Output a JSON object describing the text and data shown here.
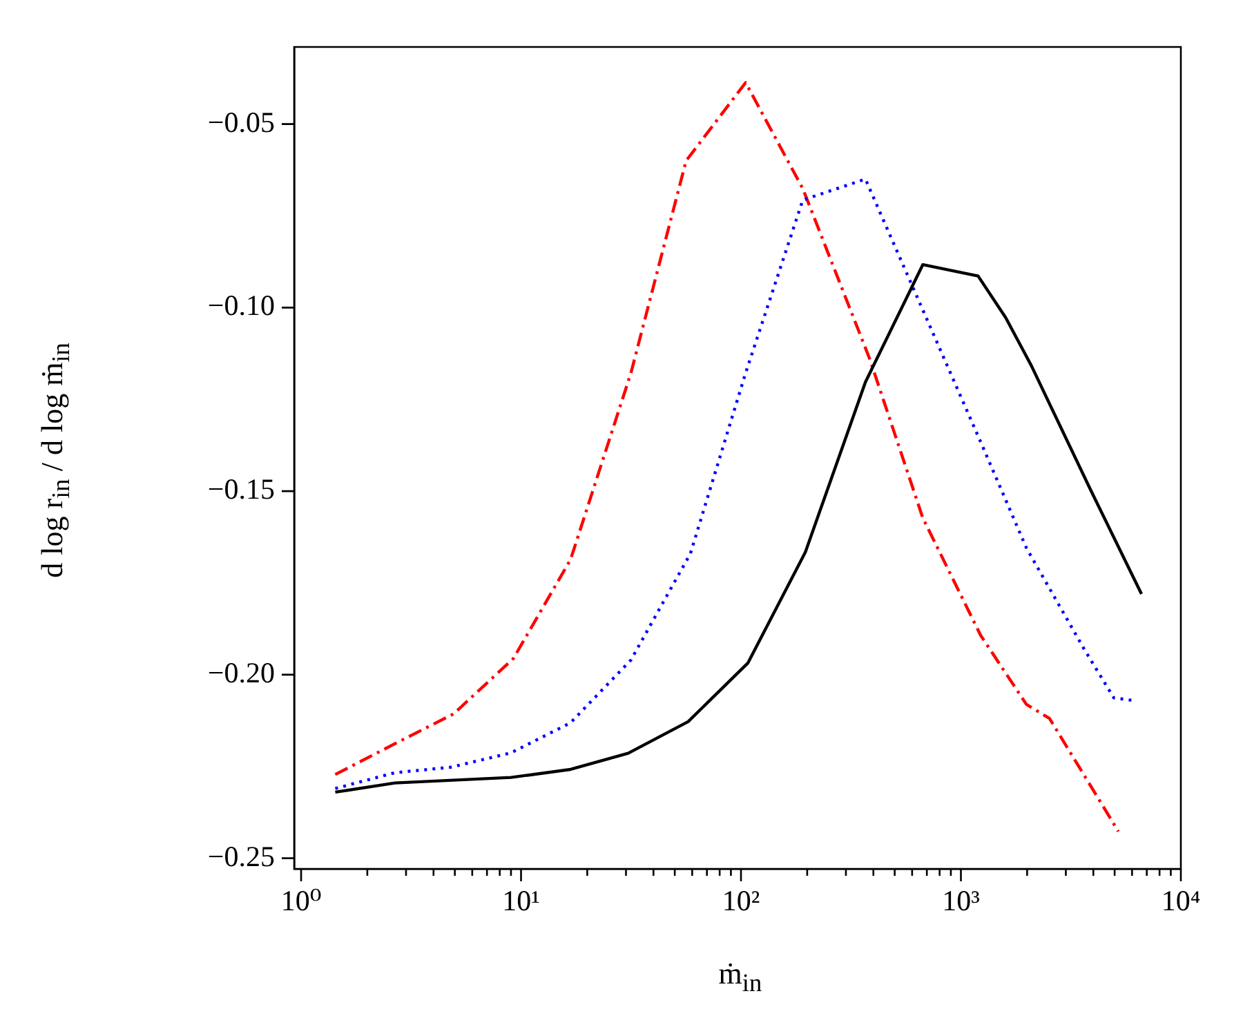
{
  "chart_data": {
    "type": "line",
    "xlabel": "ṁ$_{in}$",
    "ylabel": "d log r$_{in}$ / d log ṁ$_{in}$",
    "log": "x",
    "grid": false,
    "legend": false,
    "xlim": [
      0.93,
      10000
    ],
    "ylim": [
      -0.2529,
      -0.029
    ],
    "xticks": [
      {
        "value": 1,
        "label": "10⁰"
      },
      {
        "value": 2,
        "label": null
      },
      {
        "value": 3,
        "label": null
      },
      {
        "value": 4,
        "label": null
      },
      {
        "value": 5,
        "label": null
      },
      {
        "value": 6,
        "label": null
      },
      {
        "value": 7,
        "label": null
      },
      {
        "value": 8,
        "label": null
      },
      {
        "value": 9,
        "label": null
      },
      {
        "value": 10,
        "label": "10¹"
      },
      {
        "value": 20,
        "label": null
      },
      {
        "value": 30,
        "label": null
      },
      {
        "value": 40,
        "label": null
      },
      {
        "value": 50,
        "label": null
      },
      {
        "value": 60,
        "label": null
      },
      {
        "value": 70,
        "label": null
      },
      {
        "value": 80,
        "label": null
      },
      {
        "value": 90,
        "label": null
      },
      {
        "value": 100,
        "label": "10²"
      },
      {
        "value": 200,
        "label": null
      },
      {
        "value": 300,
        "label": null
      },
      {
        "value": 400,
        "label": null
      },
      {
        "value": 500,
        "label": null
      },
      {
        "value": 600,
        "label": null
      },
      {
        "value": 700,
        "label": null
      },
      {
        "value": 800,
        "label": null
      },
      {
        "value": 900,
        "label": null
      },
      {
        "value": 1000,
        "label": "10³"
      },
      {
        "value": 2000,
        "label": null
      },
      {
        "value": 3000,
        "label": null
      },
      {
        "value": 4000,
        "label": null
      },
      {
        "value": 5000,
        "label": null
      },
      {
        "value": 6000,
        "label": null
      },
      {
        "value": 7000,
        "label": null
      },
      {
        "value": 8000,
        "label": null
      },
      {
        "value": 9000,
        "label": null
      },
      {
        "value": 10000,
        "label": "10⁴"
      }
    ],
    "yticks": [
      {
        "value": -0.05,
        "label": "−0.05"
      },
      {
        "value": -0.1,
        "label": "−0.10"
      },
      {
        "value": -0.15,
        "label": "−0.15"
      },
      {
        "value": -0.2,
        "label": "−0.20"
      },
      {
        "value": -0.25,
        "label": "−0.25"
      }
    ],
    "series": [
      {
        "color": "#000000",
        "line_style": "solid",
        "x": [
          1.43,
          2.67,
          9.0,
          16.8,
          30.7,
          57.5,
          107.6,
          196,
          368,
          671,
          1197,
          1597,
          2094,
          3897,
          6622
        ],
        "values": [
          -0.232,
          -0.2295,
          -0.228,
          -0.2258,
          -0.2214,
          -0.2128,
          -0.1968,
          -0.1667,
          -0.1203,
          -0.0883,
          -0.0914,
          -0.1027,
          -0.1159,
          -0.1498,
          -0.178
        ]
      },
      {
        "color": "#0000ff",
        "line_style": "dotted",
        "x": [
          1.43,
          2.67,
          4.81,
          9.0,
          16.8,
          31.6,
          58.9,
          105,
          191,
          368,
          1230,
          1986,
          3630,
          4955,
          6165
        ],
        "values": [
          -0.231,
          -0.2267,
          -0.2252,
          -0.2213,
          -0.2131,
          -0.196,
          -0.167,
          -0.1178,
          -0.0707,
          -0.065,
          -0.1366,
          -0.1655,
          -0.193,
          -0.2063,
          -0.2071
        ]
      },
      {
        "color": "#ff0000",
        "line_style": "dashdot",
        "x": [
          1.43,
          2.67,
          4.93,
          9.23,
          16.8,
          31.6,
          56.3,
          105,
          191,
          385,
          671,
          1230,
          1985,
          2527,
          5200
        ],
        "values": [
          -0.2272,
          -0.2188,
          -0.2107,
          -0.1956,
          -0.1686,
          -0.1178,
          -0.06,
          -0.0387,
          -0.0676,
          -0.114,
          -0.1573,
          -0.1893,
          -0.2081,
          -0.2119,
          -0.2427
        ]
      }
    ]
  }
}
